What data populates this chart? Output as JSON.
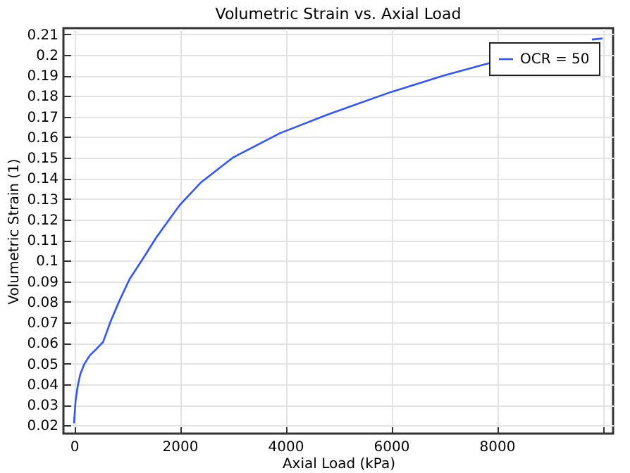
{
  "chart_data": {
    "type": "line",
    "title": "Volumetric Strain vs. Axial Load",
    "xlabel": "Axial Load (kPa)",
    "ylabel": "Volumetric Strain (1)",
    "x": [
      0,
      30,
      70,
      120,
      200,
      300,
      420,
      550,
      700,
      850,
      1050,
      1330,
      1550,
      1800,
      2000,
      2400,
      3000,
      3900,
      4800,
      6000,
      7000,
      8000,
      9000,
      9800,
      10000
    ],
    "series": [
      {
        "name": "OCR = 50",
        "color": "#3355ff",
        "values": [
          0.021,
          0.032,
          0.039,
          0.045,
          0.05,
          0.054,
          0.057,
          0.0605,
          0.071,
          0.08,
          0.091,
          0.102,
          0.111,
          0.12,
          0.127,
          0.138,
          0.15,
          0.162,
          0.171,
          0.182,
          0.19,
          0.197,
          null,
          0.2075,
          0.208
        ]
      }
    ],
    "xlim": [
      -200,
      10200
    ],
    "ylim": [
      0.016,
      0.213
    ],
    "xticks": [
      0,
      2000,
      4000,
      6000,
      8000,
      {
        "value": 10000,
        "label": null
      }
    ],
    "yticks": [
      0.02,
      0.03,
      0.04,
      0.05,
      0.06,
      0.07,
      0.08,
      0.09,
      0.1,
      0.11,
      0.12,
      0.13,
      0.14,
      0.15,
      0.16,
      0.17,
      0.18,
      0.19,
      0.2,
      0.21
    ],
    "grid": true,
    "legend": "top right",
    "line_style": "solid",
    "marker": "none"
  }
}
